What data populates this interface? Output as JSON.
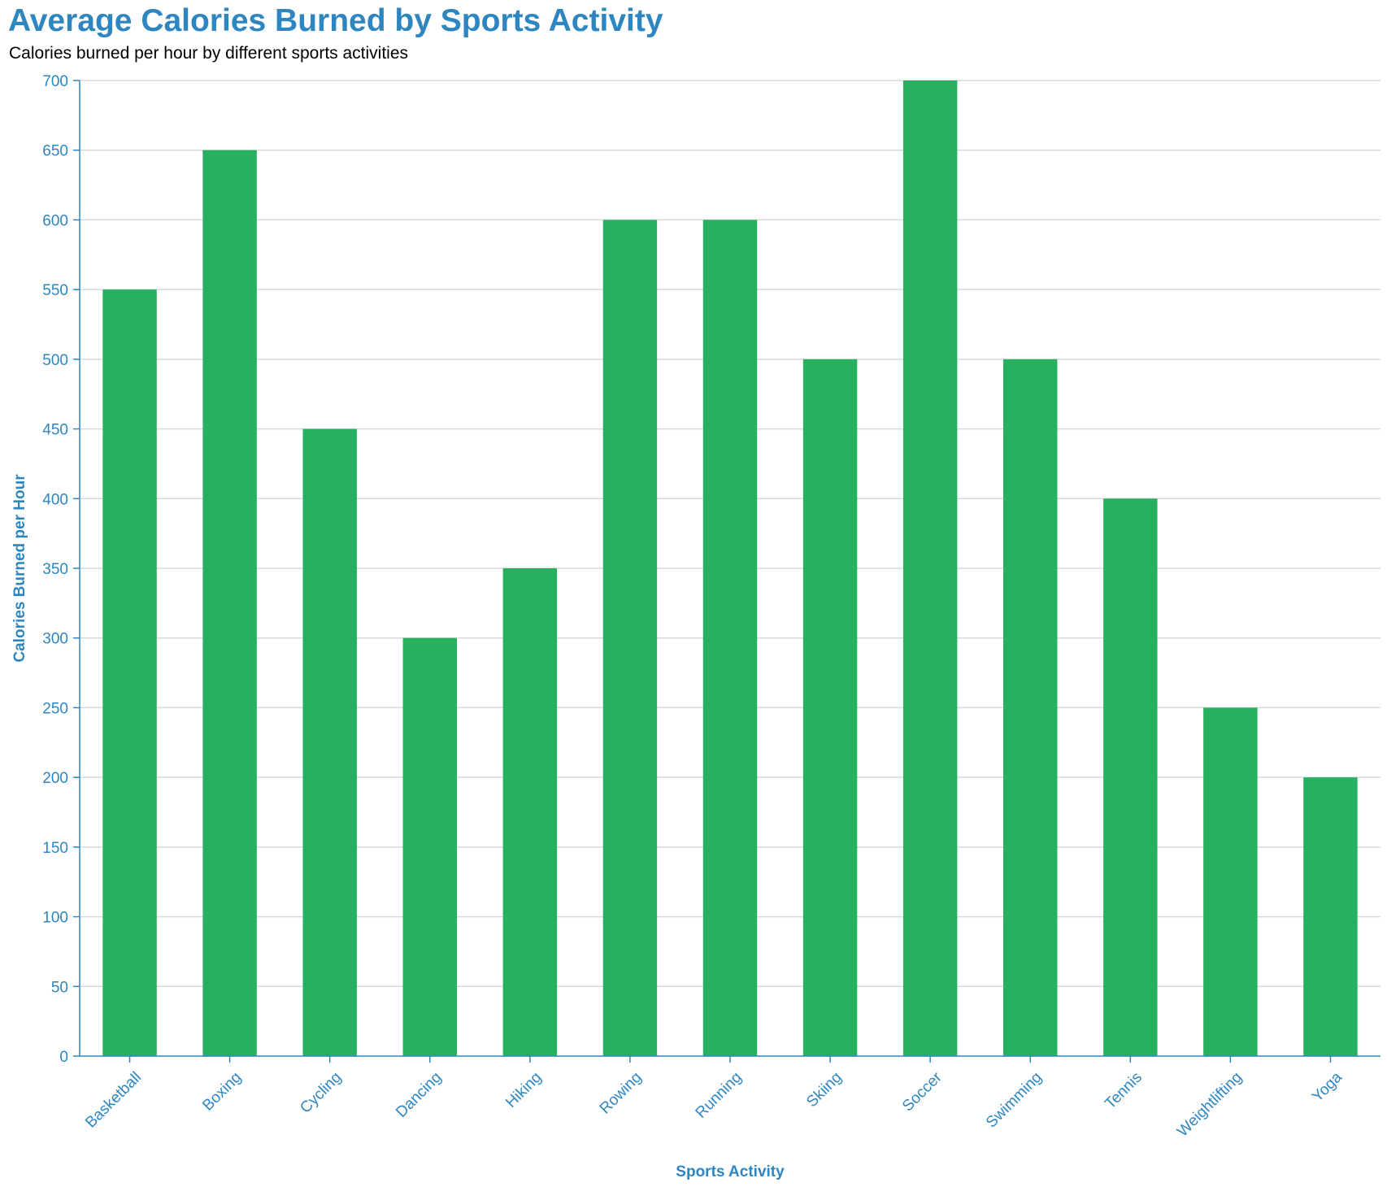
{
  "title": "Average Calories Burned by Sports Activity",
  "subtitle": "Calories burned per hour by different sports activities",
  "colors": {
    "title": "#2e86c1",
    "bar": "#27b060",
    "axis": "#2e86c1",
    "grid": "#d9d9d9"
  },
  "chart_data": {
    "type": "bar",
    "title": "Average Calories Burned by Sports Activity",
    "subtitle": "Calories burned per hour by different sports activities",
    "xlabel": "Sports Activity",
    "ylabel": "Calories Burned per Hour",
    "categories": [
      "Basketball",
      "Boxing",
      "Cycling",
      "Dancing",
      "Hiking",
      "Rowing",
      "Running",
      "Skiing",
      "Soccer",
      "Swimming",
      "Tennis",
      "Weightlifting",
      "Yoga"
    ],
    "values": [
      550,
      650,
      450,
      300,
      350,
      600,
      600,
      500,
      700,
      500,
      400,
      250,
      200
    ],
    "ylim": [
      0,
      700
    ],
    "yticks": [
      0,
      50,
      100,
      150,
      200,
      250,
      300,
      350,
      400,
      450,
      500,
      550,
      600,
      650,
      700
    ],
    "grid": true,
    "legend": "none"
  }
}
